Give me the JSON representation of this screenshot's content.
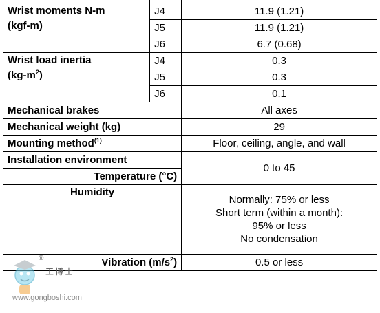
{
  "wrist_moments": {
    "label_line1": "Wrist moments N-m",
    "label_line2": "(kgf-m)",
    "rows": [
      {
        "axis": "",
        "value": ""
      },
      {
        "axis": "J5",
        "value": "11.9 (1.21)"
      },
      {
        "axis": "J6",
        "value": "6.7 (0.68)"
      }
    ],
    "top_axis": "J4",
    "top_value": "11.9 (1.21)"
  },
  "wrist_inertia": {
    "label_line1": "Wrist load inertia",
    "label_line2_pre": "(kg-m",
    "label_line2_sup": "2",
    "label_line2_post": ")",
    "rows": [
      {
        "axis": "J4",
        "value": "0.3"
      },
      {
        "axis": "J5",
        "value": "0.3"
      },
      {
        "axis": "J6",
        "value": "0.1"
      }
    ]
  },
  "brakes": {
    "label": "Mechanical brakes",
    "value": "All axes"
  },
  "weight": {
    "label": "Mechanical weight (kg)",
    "value": "29"
  },
  "mounting": {
    "label": "Mounting method",
    "note": "(1)",
    "value": "Floor, ceiling, angle, and wall"
  },
  "environment": {
    "label": "Installation environment",
    "temperature_label": "Temperature (°C)",
    "temperature_value": "0 to 45",
    "humidity_label": "Humidity",
    "humidity_lines": [
      "Normally: 75% or less",
      "Short term (within a month):",
      "95% or less",
      "No condensation"
    ],
    "vibration_label_pre": "Vibration (m/s",
    "vibration_sup": "2",
    "vibration_label_post": ")",
    "vibration_value": "0.5 or less"
  },
  "watermark": {
    "url": "www.gongboshi.com",
    "brand": "工博士",
    "registered": "®"
  }
}
